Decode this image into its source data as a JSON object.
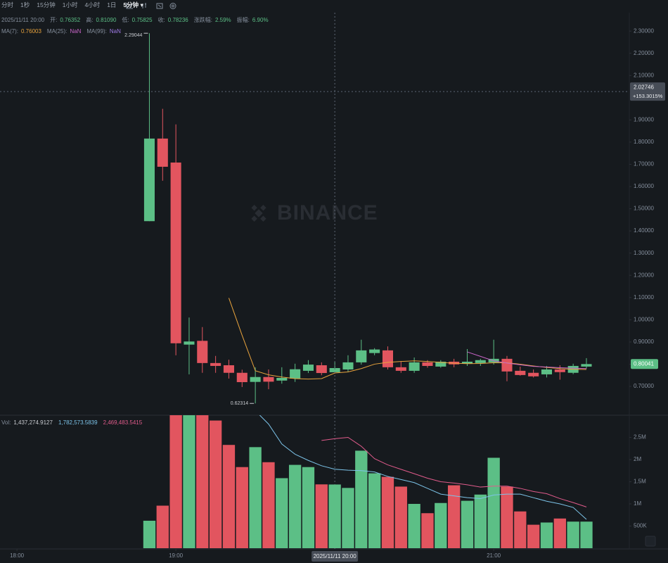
{
  "toolbar": {
    "items": [
      "分时",
      "1秒",
      "15分钟",
      "1小时",
      "4小时",
      "1日"
    ],
    "active": "5分钟"
  },
  "info": {
    "time": "2025/11/11 20:00",
    "fields": [
      {
        "label": "开:",
        "value": "0.76352"
      },
      {
        "label": "高:",
        "value": "0.81090"
      },
      {
        "label": "低:",
        "value": "0.75825"
      },
      {
        "label": "收:",
        "value": "0.78236"
      },
      {
        "label": "涨跌幅:",
        "value": "2.59%"
      },
      {
        "label": "振幅:",
        "value": "6.90%"
      }
    ]
  },
  "watermark": "BINANCE",
  "chart_data": [
    {
      "type": "candlestick",
      "up_color": "#5cbf86",
      "down_color": "#e2555f",
      "x": [
        50,
        55,
        60,
        65,
        70,
        75,
        80,
        85,
        90,
        95,
        100,
        105,
        110,
        115,
        120,
        125,
        130,
        135,
        140,
        145,
        150,
        155,
        160,
        165,
        170,
        175,
        180,
        185,
        190,
        195,
        200,
        205,
        210,
        215
      ],
      "open": [
        1.444,
        1.816,
        1.708,
        0.888,
        0.905,
        0.805,
        0.795,
        0.761,
        0.72,
        0.742,
        0.726,
        0.735,
        0.77,
        0.795,
        0.76352,
        0.776,
        0.808,
        0.85,
        0.862,
        0.786,
        0.77,
        0.808,
        0.789,
        0.811,
        0.802,
        0.805,
        0.808,
        0.824,
        0.77,
        0.761,
        0.754,
        0.776,
        0.761,
        0.789
      ],
      "high": [
        2.29044,
        1.95,
        1.88,
        1.01,
        0.967,
        0.837,
        0.82,
        0.775,
        0.786,
        0.776,
        0.786,
        0.802,
        0.818,
        0.808,
        0.8109,
        0.84,
        0.91,
        0.872,
        0.88,
        0.814,
        0.83,
        0.818,
        0.818,
        0.824,
        0.868,
        0.824,
        0.91,
        0.837,
        0.789,
        0.776,
        0.792,
        0.795,
        0.802,
        0.827
      ],
      "low": [
        1.444,
        1.626,
        0.84,
        0.754,
        0.761,
        0.761,
        0.735,
        0.697,
        0.62314,
        0.687,
        0.712,
        0.72,
        0.76,
        0.75,
        0.75825,
        0.766,
        0.798,
        0.84,
        0.776,
        0.761,
        0.761,
        0.784,
        0.784,
        0.786,
        0.792,
        0.792,
        0.798,
        0.723,
        0.748,
        0.74,
        0.74,
        0.73,
        0.755,
        0.78
      ],
      "close": [
        1.816,
        1.689,
        0.894,
        0.902,
        0.805,
        0.792,
        0.761,
        0.719,
        0.742,
        0.721,
        0.738,
        0.777,
        0.798,
        0.76,
        0.78236,
        0.808,
        0.862,
        0.866,
        0.786,
        0.77,
        0.808,
        0.792,
        0.811,
        0.799,
        0.811,
        0.818,
        0.824,
        0.767,
        0.751,
        0.745,
        0.776,
        0.764,
        0.792,
        0.80041
      ],
      "series": [
        {
          "name": "MA(7):",
          "color": "#e8a33d",
          "legend_value": 0.76003,
          "values": [
            null,
            null,
            null,
            null,
            null,
            null,
            1.098,
            0.93,
            0.77,
            0.752,
            0.742,
            0.735,
            0.733,
            0.735,
            0.76003,
            0.765,
            0.78,
            0.8,
            0.808,
            0.812,
            0.815,
            0.812,
            0.808,
            0.804,
            0.802,
            0.803,
            0.806,
            0.806,
            0.8,
            0.792,
            0.785,
            0.78,
            0.777,
            0.776
          ]
        },
        {
          "name": "MA(25):",
          "color": "#c864c8",
          "legend_value": "NaN",
          "values": [
            null,
            null,
            null,
            null,
            null,
            null,
            null,
            null,
            null,
            null,
            null,
            null,
            null,
            null,
            null,
            null,
            null,
            null,
            null,
            null,
            null,
            null,
            null,
            null,
            0.855,
            0.835,
            0.815,
            0.805,
            0.797,
            0.79,
            0.787,
            0.784,
            0.782,
            0.78
          ]
        },
        {
          "name": "MA(99):",
          "color": "#9f7ae6",
          "legend_value": "NaN",
          "values": [
            null,
            null,
            null,
            null,
            null,
            null,
            null,
            null,
            null,
            null,
            null,
            null,
            null,
            null,
            null,
            null,
            null,
            null,
            null,
            null,
            null,
            null,
            null,
            null,
            null,
            null,
            null,
            null,
            null,
            null,
            null,
            null,
            null,
            null
          ]
        }
      ],
      "high_marker": 0,
      "low_marker": 8,
      "crosshair": {
        "price": 2.02746,
        "change": "+153.3015%",
        "time": {
          "value": 120,
          "label": "2025/11/11 20:00"
        }
      },
      "xlim": [
        -6.4,
        231.2
      ],
      "xticks": [
        {
          "value": 0,
          "label": "18:00"
        },
        {
          "value": 60,
          "label": "19:00"
        },
        {
          "value": 180,
          "label": "21:00"
        }
      ],
      "ylim": [
        0.57,
        2.383
      ],
      "yticks": [
        {
          "value": 2.3,
          "label": "2.30000"
        },
        {
          "value": 2.2,
          "label": "2.20000"
        },
        {
          "value": 2.1,
          "label": "2.10000"
        },
        {
          "value": 1.9,
          "label": "1.90000"
        },
        {
          "value": 1.8,
          "label": "1.80000"
        },
        {
          "value": 1.7,
          "label": "1.70000"
        },
        {
          "value": 1.6,
          "label": "1.60000"
        },
        {
          "value": 1.5,
          "label": "1.50000"
        },
        {
          "value": 1.4,
          "label": "1.40000"
        },
        {
          "value": 1.3,
          "label": "1.30000"
        },
        {
          "value": 1.2,
          "label": "1.20000"
        },
        {
          "value": 1.1,
          "label": "1.10000"
        },
        {
          "value": 1,
          "label": "1.00000"
        },
        {
          "value": 0.9,
          "label": "0.90000"
        },
        {
          "value": 0.8,
          "label": "0.80000"
        },
        {
          "value": 0.7,
          "label": "0.70000"
        }
      ]
    },
    {
      "type": "volume",
      "up_color": "#5cbf86",
      "down_color": "#e2555f",
      "legend_label": "Vol:",
      "legend_value": "1,437,274.9127",
      "x": [
        50,
        55,
        60,
        65,
        70,
        75,
        80,
        85,
        90,
        95,
        100,
        105,
        110,
        115,
        120,
        125,
        130,
        135,
        140,
        145,
        150,
        155,
        160,
        165,
        170,
        175,
        180,
        185,
        190,
        195,
        200,
        205,
        210,
        215
      ],
      "values": [
        620000,
        960000,
        3200000,
        3200000,
        3200000,
        2880000,
        2330000,
        1830000,
        2280000,
        1940000,
        1580000,
        1880000,
        1830000,
        1440000,
        1437274.9127,
        1360000,
        2200000,
        1690000,
        1610000,
        1390000,
        1000000,
        790000,
        1020000,
        1420000,
        1070000,
        1210000,
        2040000,
        1390000,
        830000,
        530000,
        580000,
        670000,
        600000,
        600000
      ],
      "series": [
        {
          "name": "MA(5)",
          "color": "#7cc3e8",
          "legend_value": "1,782,573.5839",
          "values": [
            null,
            null,
            null,
            null,
            null,
            null,
            null,
            null,
            3100000,
            2800000,
            2350000,
            2120000,
            1980000,
            1860000,
            1782573.5839,
            1760000,
            1750000,
            1720000,
            1620000,
            1550000,
            1480000,
            1350000,
            1220000,
            1180000,
            1140000,
            1120000,
            1200000,
            1220000,
            1220000,
            1140000,
            1060000,
            1000000,
            920000,
            650000
          ]
        },
        {
          "name": "MA(10)",
          "color": "#e05b8b",
          "legend_value": "2,469,483.5415",
          "values": [
            null,
            null,
            null,
            null,
            null,
            null,
            null,
            null,
            null,
            null,
            null,
            null,
            null,
            2430000,
            2469483.5415,
            2500000,
            2300000,
            2020000,
            1880000,
            1780000,
            1680000,
            1580000,
            1500000,
            1470000,
            1430000,
            1380000,
            1400000,
            1400000,
            1350000,
            1280000,
            1230000,
            1120000,
            1030000,
            930000
          ]
        }
      ],
      "xlim": [
        -6.4,
        231.2
      ],
      "ylim": [
        0,
        3000000
      ],
      "yticks": [
        {
          "value": 500000,
          "label": "500K"
        },
        {
          "value": 1000000,
          "label": "1M"
        },
        {
          "value": 1500000,
          "label": "1.5M"
        },
        {
          "value": 2000000,
          "label": "2M"
        },
        {
          "value": 2500000,
          "label": "2.5M"
        }
      ]
    }
  ]
}
